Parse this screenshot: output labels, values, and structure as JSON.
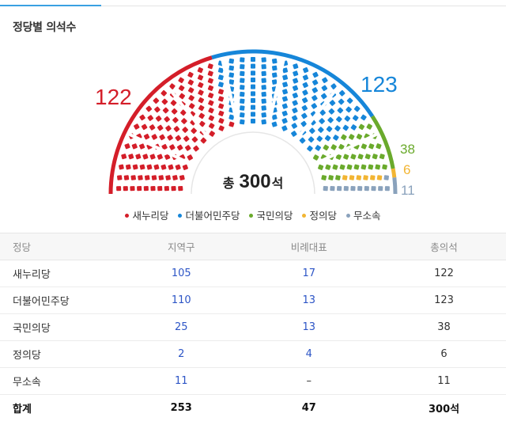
{
  "section_title": "정당별 의석수",
  "total": {
    "prefix": "총",
    "value": "300",
    "unit": "석"
  },
  "parties": [
    {
      "key": "saenuri",
      "name": "새누리당",
      "color": "#d41e29",
      "seats": "122"
    },
    {
      "key": "minju",
      "name": "더불어민주당",
      "color": "#1686d9",
      "seats": "123"
    },
    {
      "key": "gukmin",
      "name": "국민의당",
      "color": "#6aaa2c",
      "seats": "38"
    },
    {
      "key": "jeongui",
      "name": "정의당",
      "color": "#f2b533",
      "seats": "6"
    },
    {
      "key": "musosok",
      "name": "무소속",
      "color": "#8aa2bc",
      "seats": "11"
    }
  ],
  "table": {
    "headers": {
      "party": "정당",
      "district": "지역구",
      "proportional": "비례대표",
      "total": "총의석"
    },
    "rows": [
      {
        "party": "새누리당",
        "district": "105",
        "proportional": "17",
        "total": "122"
      },
      {
        "party": "더불어민주당",
        "district": "110",
        "proportional": "13",
        "total": "123"
      },
      {
        "party": "국민의당",
        "district": "25",
        "proportional": "13",
        "total": "38"
      },
      {
        "party": "정의당",
        "district": "2",
        "proportional": "4",
        "total": "6"
      },
      {
        "party": "무소속",
        "district": "11",
        "proportional": "–",
        "total": "11"
      }
    ],
    "total_row": {
      "party": "합계",
      "district": "253",
      "proportional": "47",
      "total": "300석"
    }
  }
}
